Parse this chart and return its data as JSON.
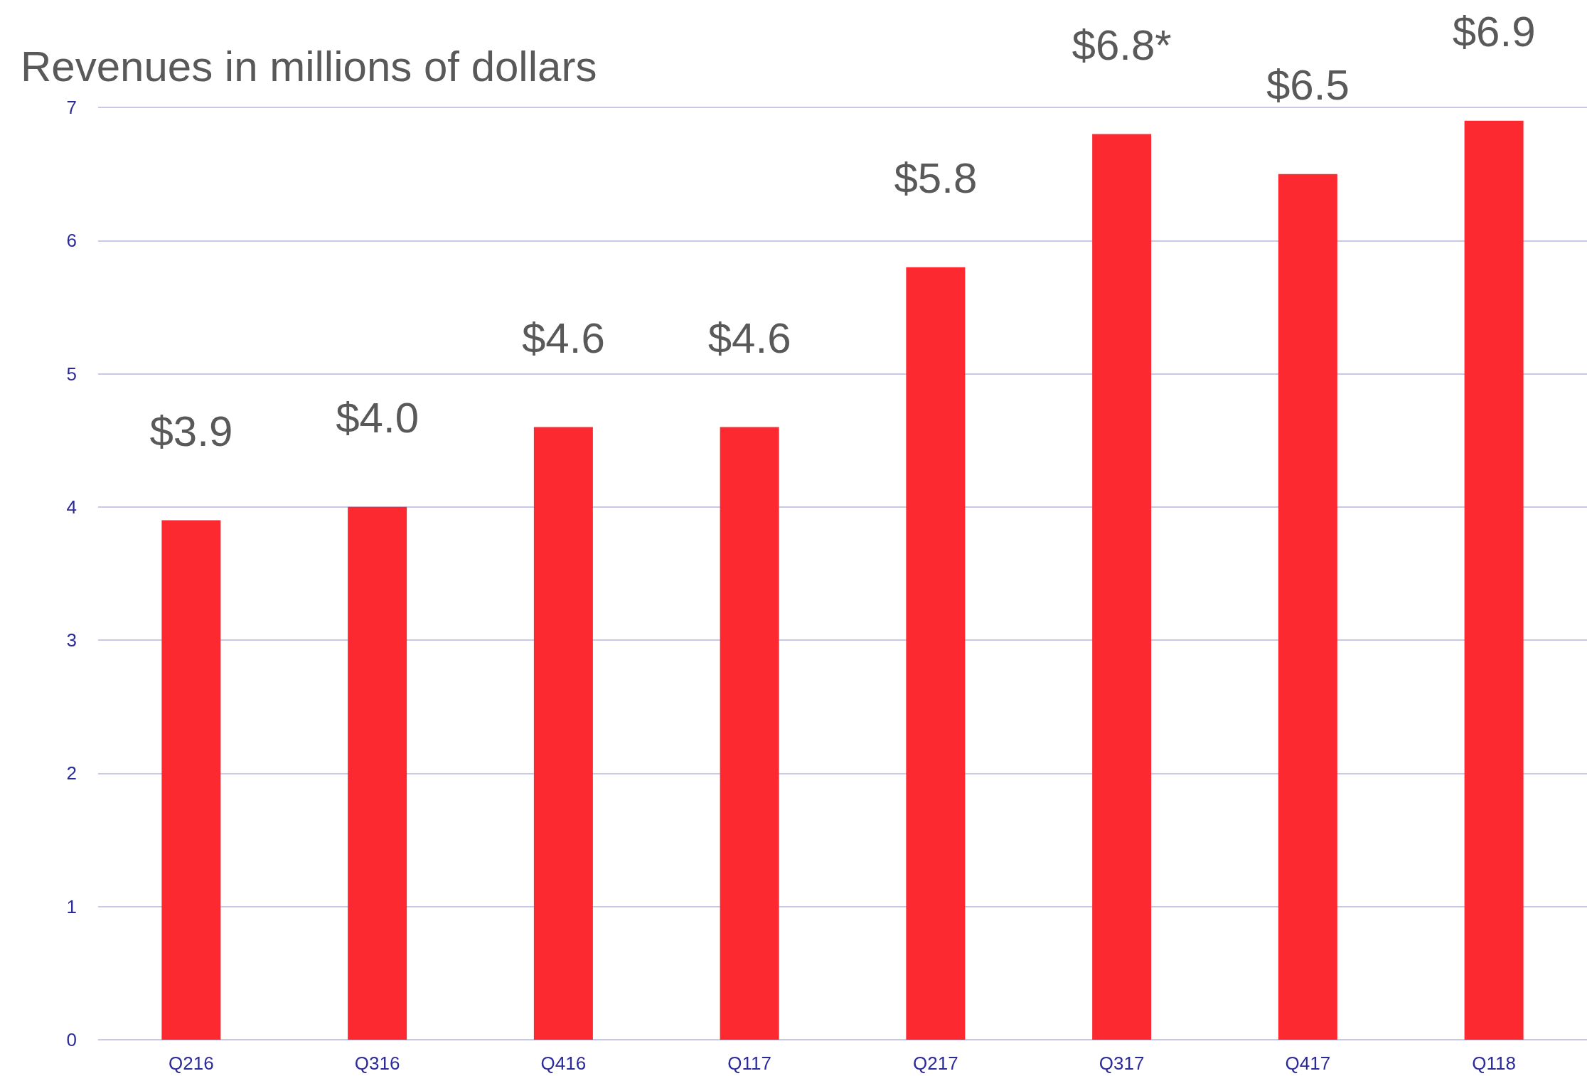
{
  "chart_data": {
    "type": "bar",
    "title": "Revenues in millions of dollars",
    "categories": [
      "Q216",
      "Q316",
      "Q416",
      "Q117",
      "Q217",
      "Q317",
      "Q417",
      "Q118"
    ],
    "values": [
      3.9,
      4.0,
      4.6,
      4.6,
      5.8,
      6.8,
      6.5,
      6.9
    ],
    "value_labels": [
      "$3.9",
      "$4.0",
      "$4.6",
      "$4.6",
      "$5.8",
      "$6.8*",
      "$6.5",
      "$6.9"
    ],
    "color": "#fc2a30",
    "ylim": [
      0,
      7
    ],
    "yticks": [
      0,
      1,
      2,
      3,
      4,
      5,
      6,
      7
    ],
    "grid": "y"
  }
}
